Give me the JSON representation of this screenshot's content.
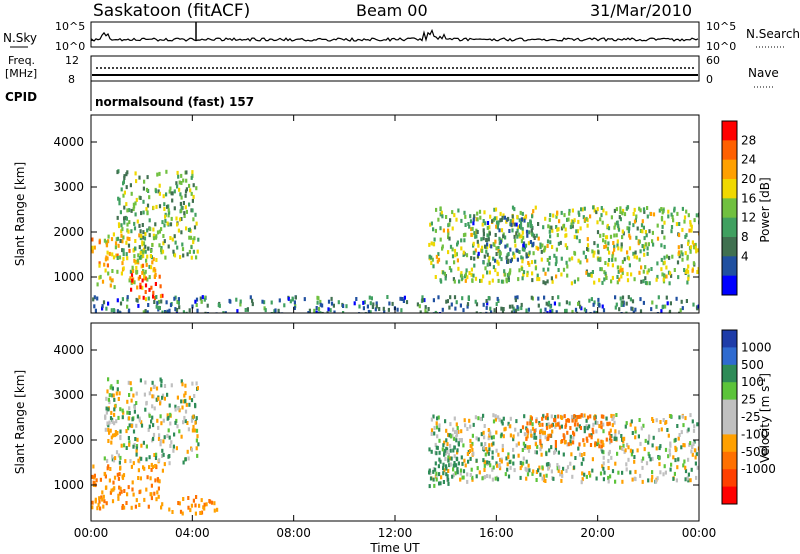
{
  "header": {
    "station": "Saskatoon (fitACF)",
    "beam": "Beam 00",
    "date": "31/Mar/2010"
  },
  "noise_panel": {
    "left_label": "N.Sky",
    "right_label": "N.Search",
    "left_top_tick": "10^5",
    "left_bottom_tick": "10^0",
    "right_top_tick": "10^5",
    "right_bottom_tick": "10^0"
  },
  "freq_panel": {
    "left_label_line1": "Freq.",
    "left_label_line2": "[MHz]",
    "right_label": "Nave",
    "left_top_tick": "12",
    "left_bottom_tick": "8",
    "right_top_tick": "60",
    "right_bottom_tick": "0"
  },
  "cpid_panel": {
    "label": "CPID",
    "value": "normalsound (fast) 157"
  },
  "power_colorbar": {
    "label": "Power [dB]",
    "ticks": [
      "28",
      "24",
      "20",
      "16",
      "12",
      "8",
      "4"
    ],
    "colors": [
      "#ff0000",
      "#ff6000",
      "#ffa000",
      "#f0d800",
      "#70c040",
      "#40a060",
      "#407050",
      "#2050a0",
      "#0000ff"
    ]
  },
  "velocity_colorbar": {
    "label": "Velocity [m s",
    "label_sup": "-1",
    "label_close": "]",
    "ticks": [
      "1000",
      "500",
      "100",
      "25",
      "-25",
      "-100",
      "-500",
      "-1000"
    ],
    "colors": [
      "#1e3ca8",
      "#2f6bd0",
      "#2e8b57",
      "#5cc43a",
      "#c0c0c0",
      "#c0c0c0",
      "#ffa000",
      "#ff7000",
      "#ff4000",
      "#ff0000"
    ]
  },
  "chart_data": [
    {
      "type": "heatmap",
      "panel": "power",
      "ylabel": "Slant Range [km]",
      "xlabel": "Time UT",
      "y_ticks": [
        1000,
        2000,
        3000,
        4000
      ],
      "ylim": [
        200,
        4600
      ],
      "x_ticks": [
        "00:00",
        "04:00",
        "08:00",
        "12:00",
        "16:00",
        "20:00",
        "00:00"
      ],
      "xlim_hours": [
        0,
        24
      ],
      "echo_regions": [
        {
          "start_hour": 0.0,
          "end_hour": 2.5,
          "range_km": [
            800,
            2000
          ],
          "dominant_power_db": 20
        },
        {
          "start_hour": 1.5,
          "end_hour": 2.8,
          "range_km": [
            500,
            1100
          ],
          "dominant_power_db": 28
        },
        {
          "start_hour": 1.0,
          "end_hour": 4.2,
          "range_km": [
            1400,
            3400
          ],
          "dominant_power_db": 14
        },
        {
          "start_hour": 0.0,
          "end_hour": 24.0,
          "range_km": [
            200,
            600
          ],
          "dominant_power_db": 8
        },
        {
          "start_hour": 13.3,
          "end_hour": 24.0,
          "range_km": [
            900,
            2600
          ],
          "dominant_power_db": 16
        },
        {
          "start_hour": 15.0,
          "end_hour": 17.5,
          "range_km": [
            1300,
            2400
          ],
          "dominant_power_db": 8
        }
      ]
    },
    {
      "type": "heatmap",
      "panel": "velocity",
      "ylabel": "Slant Range [km]",
      "xlabel": "Time UT",
      "y_ticks": [
        1000,
        2000,
        3000,
        4000
      ],
      "ylim": [
        200,
        4600
      ],
      "x_ticks": [
        "00:00",
        "04:00",
        "08:00",
        "12:00",
        "16:00",
        "20:00",
        "00:00"
      ],
      "xlim_hours": [
        0,
        24
      ],
      "echo_regions": [
        {
          "start_hour": 0.0,
          "end_hour": 2.8,
          "range_km": [
            500,
            1500
          ],
          "dominant_velocity_ms": -300
        },
        {
          "start_hour": 0.5,
          "end_hour": 4.2,
          "range_km": [
            1500,
            3400
          ],
          "dominant_velocity_ms": 0
        },
        {
          "start_hour": 3.0,
          "end_hour": 5.0,
          "range_km": [
            400,
            800
          ],
          "dominant_velocity_ms": -300
        },
        {
          "start_hour": 13.3,
          "end_hour": 24.0,
          "range_km": [
            1100,
            2600
          ],
          "dominant_velocity_ms": 0
        },
        {
          "start_hour": 17.0,
          "end_hour": 20.5,
          "range_km": [
            1900,
            2600
          ],
          "dominant_velocity_ms": -400
        },
        {
          "start_hour": 13.3,
          "end_hour": 14.5,
          "range_km": [
            1000,
            2200
          ],
          "dominant_velocity_ms": 150
        }
      ]
    }
  ]
}
